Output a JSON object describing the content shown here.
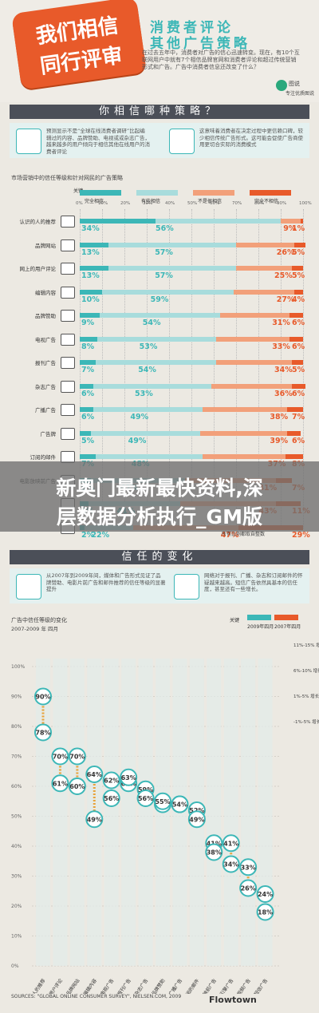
{
  "header": {
    "badge_line1": "我们相信",
    "badge_line2": "同行评审",
    "title1": "消费者评论",
    "title2": "其他广告策略",
    "intro": "在过去五年中，消费者对广告的信心迅速转变。现在，有10个互联网用户中就有7个相信品牌官网和消费者评论和超过传统营销形式和广告。广告中消费者信息还改变了什么？",
    "logo_name": "图说",
    "logo_sub": "专注优质图说"
  },
  "section1": {
    "title": "你相信哪种策略？",
    "info_left": "预测显示不是“全球在线消费者调研”比起编辑过的内容、品牌赞助、电视或或杂志广告，越来越多的用户倾向于相信其他在线用户的消费者评论",
    "info_right": "这意味着消费者在决定过程中更信赖口碑，较少相信传统广告形式。这可能会促使广告商使用更切合实际的消费模式"
  },
  "chart1_title": "市场营销中的信任等级和针对网民的广告策略",
  "legend_label": "关键",
  "legend": [
    "完全相信",
    "有些相信",
    "不是很相信",
    "完全不相信"
  ],
  "ticks": [
    "0%",
    "10%",
    "20%",
    "30%",
    "40%",
    "50%",
    "60%",
    "70%",
    "80%",
    "90%",
    "100%"
  ],
  "chart_data": [
    {
      "type": "bar",
      "title": "市场营销中的信任等级和针对网民的广告策略",
      "categories": [
        "认识的人的推荐",
        "品牌网站",
        "网上的用户评论",
        "编辑内容",
        "品牌赞助",
        "电视广告",
        "报刊广告",
        "杂志广告",
        "广播广告",
        "广告牌",
        "订阅的邮件",
        "电影放映前广告",
        "",
        ""
      ],
      "series": [
        {
          "name": "完全相信",
          "values": [
            34,
            13,
            13,
            10,
            9,
            8,
            7,
            6,
            6,
            5,
            7,
            5,
            4,
            2
          ]
        },
        {
          "name": "有些相信",
          "values": [
            56,
            57,
            57,
            59,
            54,
            53,
            54,
            53,
            49,
            49,
            48,
            42,
            41,
            22
          ]
        },
        {
          "name": "不是很相信",
          "values": [
            9,
            26,
            25,
            27,
            31,
            33,
            34,
            36,
            38,
            39,
            37,
            41,
            43,
            47
          ]
        },
        {
          "name": "完全不相信",
          "values": [
            1,
            5,
            5,
            4,
            6,
            6,
            5,
            6,
            7,
            6,
            8,
            7,
            11,
            29
          ]
        }
      ],
      "ylim": [
        0,
        100
      ]
    },
    {
      "type": "scatter",
      "title": "广告中信任等级的变化",
      "subtitle": "2007-2009 年 四月",
      "categories": [
        "认识的人的推荐",
        "网上的用户评论",
        "品牌网站",
        "编辑内容",
        "电视广告",
        "报刊广告",
        "杂志广告",
        "品牌赞助",
        "广播广告",
        "订阅的邮件",
        "电影放映前广告",
        "搜索引擎广告",
        "在线视频广告",
        "手机短信广告"
      ],
      "series": [
        {
          "name": "2007年",
          "values": [
            78,
            61,
            60,
            49,
            56,
            63,
            56,
            55,
            54,
            49,
            38,
            34,
            26,
            18
          ]
        },
        {
          "name": "2009年",
          "values": [
            90,
            70,
            70,
            64,
            62,
            61,
            59,
            54,
            54,
            52,
            41,
            41,
            33,
            24
          ]
        }
      ],
      "ylim": [
        0,
        100
      ],
      "grid": true,
      "legend_placement": "top-right"
    }
  ],
  "section2": {
    "title": "信任的变化",
    "info_left": "从2007年到2009年间，媒体和广告形式见证了品牌赞助、电影片前广告和邮件推荐的信任等级的显著提升",
    "info_right": "网络对于报刊、广播、杂志和订阅邮件的怀疑越来越高。短信广告依然具基本的信任度，甚至还有一些增长。"
  },
  "chart2_title": "广告中信任等级的变化",
  "chart2_sub": "2007-2009 年 四月",
  "chart2_legend_label": "关键",
  "chart2_legend": [
    "2007年四月",
    "2009年四月"
  ],
  "chart2_ticks": [
    "0%",
    "10%",
    "20%",
    "30%",
    "40%",
    "50%",
    "60%",
    "70%",
    "80%",
    "90%",
    "100%"
  ],
  "right_notes": [
    "11%-15% 增长",
    "6%-10% 增长",
    "1%-5% 增长",
    "-1%-5% 增长"
  ],
  "watermark": {
    "line1": "新奥门最新最快资料,深",
    "line2": "层数据分析执行_GM版"
  },
  "source_note": "所有比例都取自整数",
  "footer_source": "SOURCES: \"GLOBAL ONLINE CONSUMER SURVEY\", NIELSEN.COM, 2009",
  "footer_brand": "Flowtown",
  "colors": {
    "teal": "#3cb7b7",
    "light_teal": "#a8dcdc",
    "orange": "#e85a2a",
    "light_orange": "#f2a07a",
    "dark": "#4b4f58"
  }
}
